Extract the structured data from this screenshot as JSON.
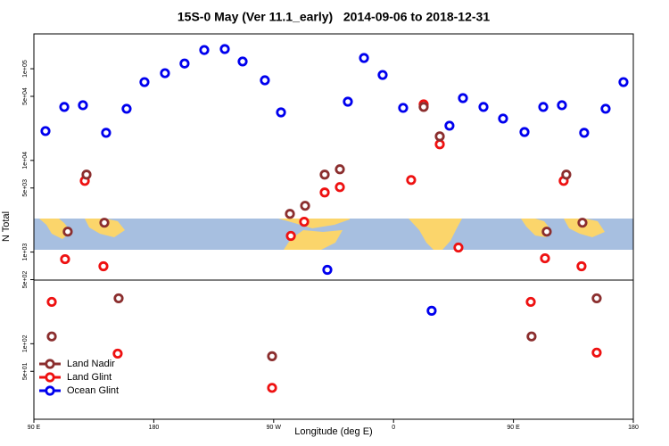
{
  "chart_data": {
    "type": "scatter",
    "title": "15S-0 May (Ver 11.1_early)   2014-09-06 to 2018-12-31",
    "x_label": "Longitude (deg E)",
    "y_label": "N Total",
    "log_y": true,
    "xlim": [
      90,
      540
    ],
    "xticks": [
      {
        "value": 90,
        "label": "90 E"
      },
      {
        "value": 180,
        "label": "180"
      },
      {
        "value": 270,
        "label": "90 W"
      },
      {
        "value": 360,
        "label": "0"
      },
      {
        "value": 450,
        "label": "90 E"
      },
      {
        "value": 540,
        "label": "180"
      }
    ],
    "ylim": [
      15,
      240000
    ],
    "yticks": [
      {
        "value": 50,
        "label": "5e+01"
      },
      {
        "value": 100,
        "label": "1e+02"
      },
      {
        "value": 500,
        "label": "5e+02"
      },
      {
        "value": 1000,
        "label": "1e+03"
      },
      {
        "value": 5000,
        "label": "5e+03"
      },
      {
        "value": 10000,
        "label": "1e+04"
      },
      {
        "value": 50000,
        "label": "5e+04"
      },
      {
        "value": 100000,
        "label": "1e+05"
      }
    ],
    "legend": "lower left",
    "series": [
      {
        "name": "Land Nadir",
        "color": "#8b2e2e",
        "x": [
          103.4,
          115.4,
          129.5,
          142.9,
          153.6,
          268.8,
          282.2,
          293.6,
          308.3,
          319.7,
          382.6,
          394.7,
          463.6,
          475.0,
          489.7,
          501.8,
          512.5
        ],
        "values": [
          120,
          1670,
          7000,
          2090,
          313,
          73,
          2610,
          3200,
          7000,
          8000,
          38300,
          18300,
          120,
          1670,
          7000,
          2090,
          313
        ]
      },
      {
        "name": "Land Glint",
        "color": "#ee1111",
        "x": [
          103.4,
          113.4,
          128.2,
          142.2,
          152.9,
          268.8,
          282.9,
          292.9,
          308.3,
          319.7,
          373.2,
          382.6,
          394.7,
          408.7,
          463.0,
          473.7,
          487.7,
          501.1,
          512.5
        ],
        "values": [
          286,
          836,
          5980,
          700,
          78,
          33,
          1500,
          2140,
          4470,
          5110,
          6110,
          40900,
          15000,
          1120,
          286,
          855,
          5980,
          700,
          80
        ]
      },
      {
        "name": "Ocean Glint",
        "color": "#0000ee",
        "x": [
          98.7,
          112.8,
          126.8,
          144.2,
          159.6,
          173.0,
          188.4,
          203.1,
          217.9,
          233.3,
          246.7,
          263.4,
          275.5,
          310.3,
          325.7,
          337.8,
          351.8,
          367.2,
          388.6,
          402.0,
          412.1,
          427.5,
          442.2,
          458.3,
          472.4,
          486.4,
          503.1,
          519.2,
          532.6
        ],
        "values": [
          20900,
          38300,
          40000,
          20000,
          36600,
          71500,
          89400,
          114000,
          160000,
          164000,
          120000,
          74800,
          33400,
          640,
          43700,
          131000,
          85500,
          37400,
          229,
          23900,
          47800,
          38300,
          28600,
          20400,
          38300,
          40000,
          20000,
          36600,
          71500
        ]
      }
    ]
  }
}
